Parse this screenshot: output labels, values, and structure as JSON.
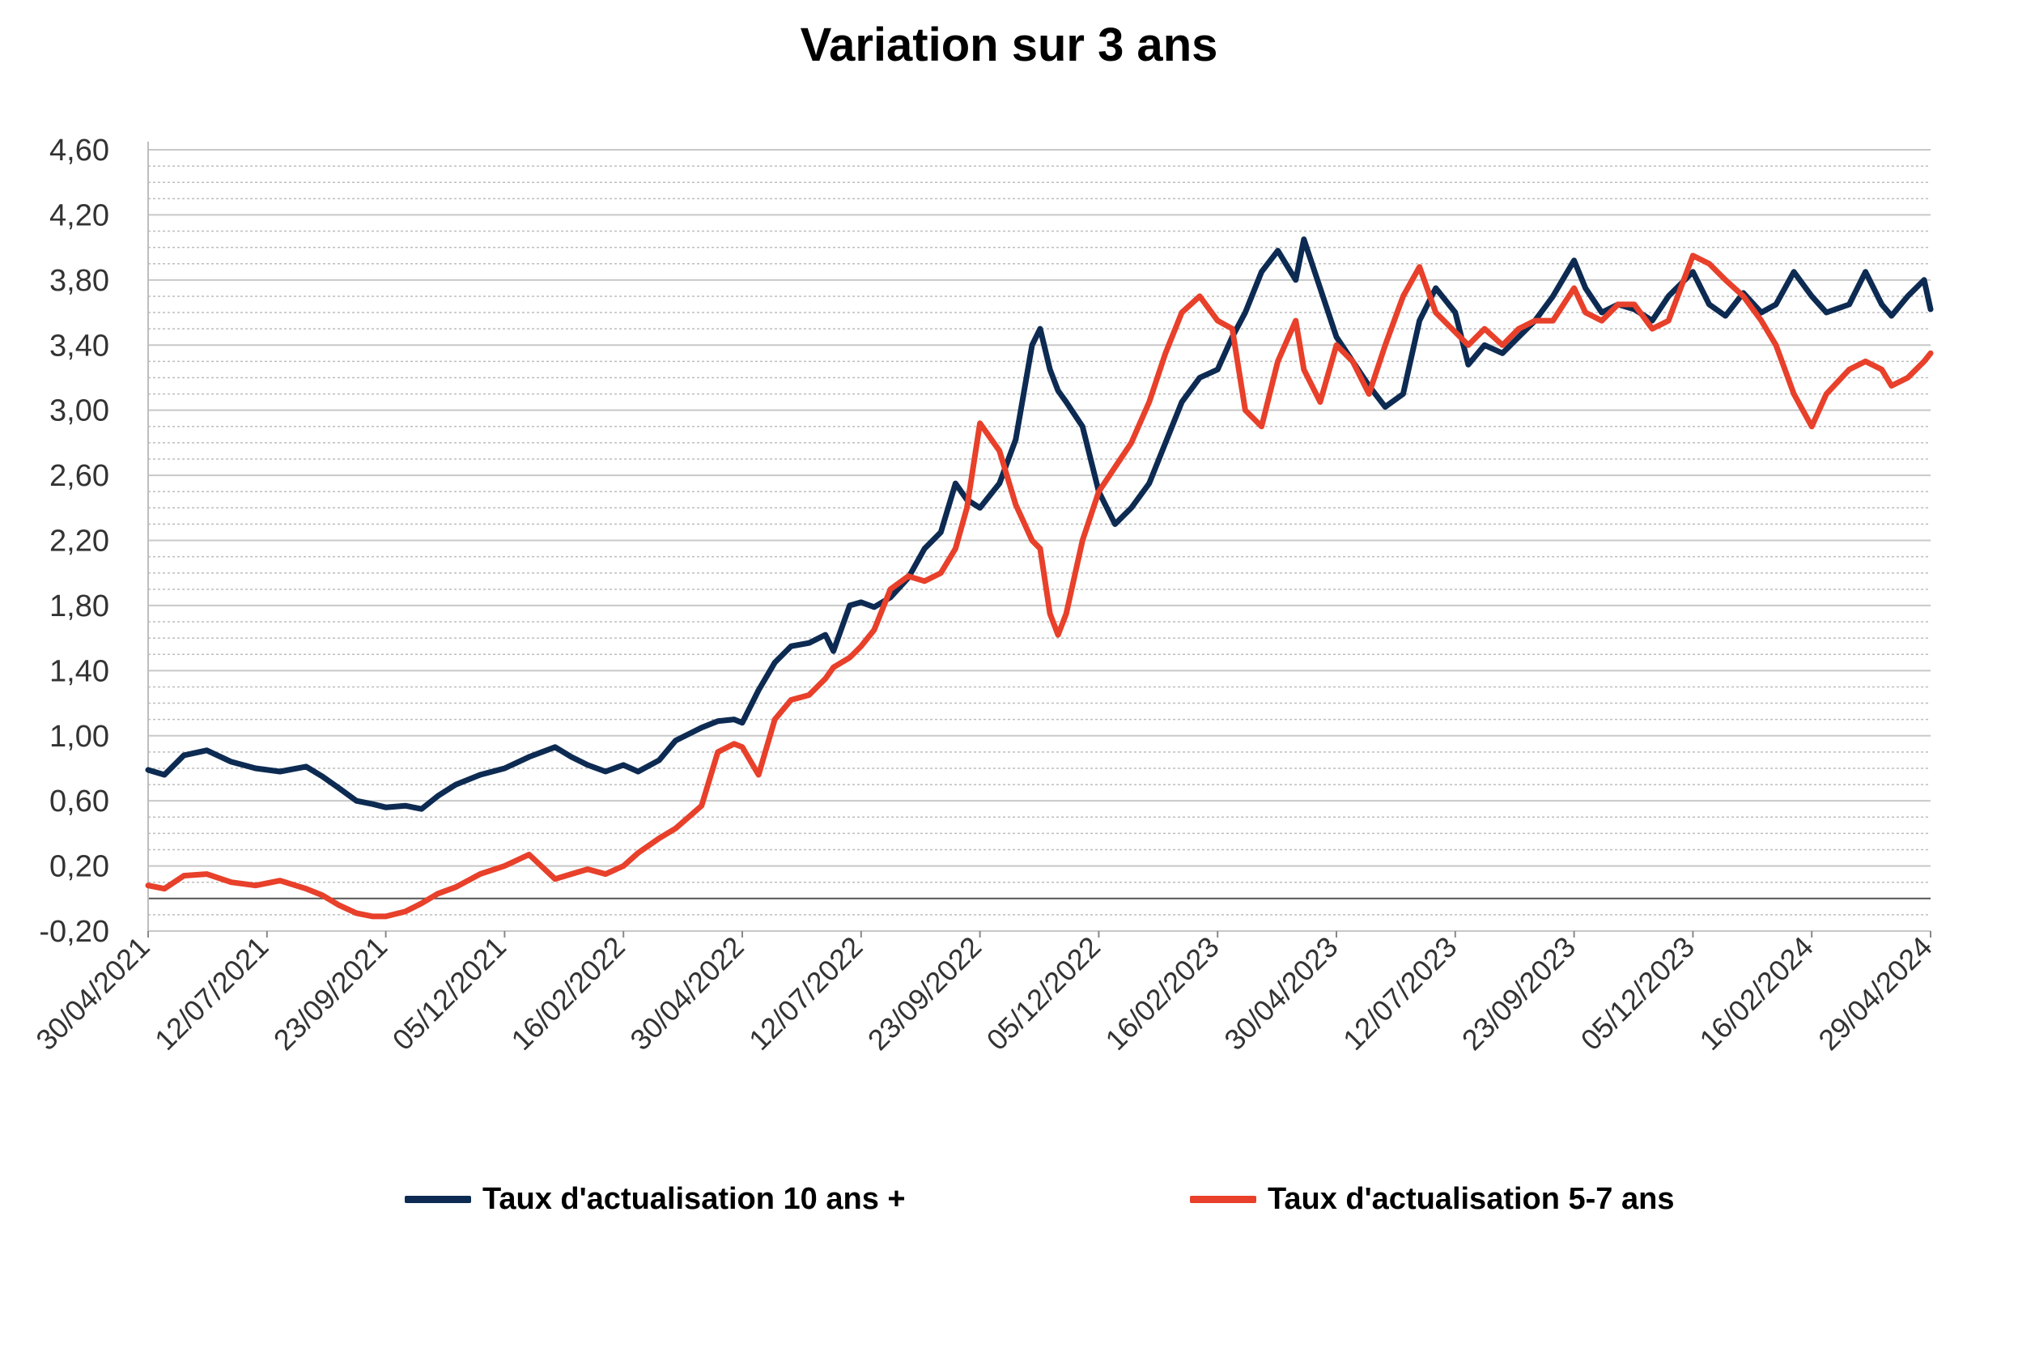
{
  "chart_data": {
    "type": "line",
    "title": "Variation sur 3 ans",
    "xlabel": "",
    "ylabel": "",
    "ylim": [
      -0.2,
      4.6
    ],
    "y_ticks": [
      "4,60",
      "4,20",
      "3,80",
      "3,40",
      "3,00",
      "2,60",
      "2,20",
      "1,80",
      "1,40",
      "1,00",
      "0,60",
      "0,20",
      "-0,20"
    ],
    "y_tick_values": [
      4.6,
      4.2,
      3.8,
      3.4,
      3.0,
      2.6,
      2.2,
      1.8,
      1.4,
      1.0,
      0.6,
      0.2,
      -0.2
    ],
    "x_tick_labels": [
      "30/04/2021",
      "12/07/2021",
      "23/09/2021",
      "05/12/2021",
      "16/02/2022",
      "30/04/2022",
      "12/07/2022",
      "23/09/2022",
      "05/12/2022",
      "16/02/2023",
      "30/04/2023",
      "12/07/2023",
      "23/09/2023",
      "05/12/2023",
      "16/02/2024",
      "29/04/2024"
    ],
    "x_range": [
      "30/04/2021",
      "29/04/2024"
    ],
    "grid": true,
    "legend_position": "bottom",
    "series": [
      {
        "name": "Taux d'actualisation 10 ans +",
        "color": "#0d2b52",
        "points": [
          [
            "30/04/2021",
            0.79
          ],
          [
            "10/05/2021",
            0.76
          ],
          [
            "22/05/2021",
            0.88
          ],
          [
            "05/06/2021",
            0.91
          ],
          [
            "20/06/2021",
            0.84
          ],
          [
            "05/07/2021",
            0.8
          ],
          [
            "20/07/2021",
            0.78
          ],
          [
            "05/08/2021",
            0.81
          ],
          [
            "15/08/2021",
            0.75
          ],
          [
            "25/08/2021",
            0.68
          ],
          [
            "05/09/2021",
            0.6
          ],
          [
            "15/09/2021",
            0.58
          ],
          [
            "23/09/2021",
            0.56
          ],
          [
            "05/10/2021",
            0.57
          ],
          [
            "15/10/2021",
            0.55
          ],
          [
            "25/10/2021",
            0.63
          ],
          [
            "05/11/2021",
            0.7
          ],
          [
            "20/11/2021",
            0.76
          ],
          [
            "05/12/2021",
            0.8
          ],
          [
            "20/12/2021",
            0.87
          ],
          [
            "05/01/2022",
            0.93
          ],
          [
            "15/01/2022",
            0.87
          ],
          [
            "25/01/2022",
            0.82
          ],
          [
            "05/02/2022",
            0.78
          ],
          [
            "16/02/2022",
            0.82
          ],
          [
            "25/02/2022",
            0.78
          ],
          [
            "10/03/2022",
            0.85
          ],
          [
            "20/03/2022",
            0.97
          ],
          [
            "05/04/2022",
            1.05
          ],
          [
            "15/04/2022",
            1.09
          ],
          [
            "25/04/2022",
            1.1
          ],
          [
            "30/04/2022",
            1.08
          ],
          [
            "10/05/2022",
            1.28
          ],
          [
            "20/05/2022",
            1.45
          ],
          [
            "30/05/2022",
            1.55
          ],
          [
            "10/06/2022",
            1.57
          ],
          [
            "20/06/2022",
            1.62
          ],
          [
            "25/06/2022",
            1.52
          ],
          [
            "05/07/2022",
            1.8
          ],
          [
            "12/07/2022",
            1.82
          ],
          [
            "20/07/2022",
            1.79
          ],
          [
            "30/07/2022",
            1.85
          ],
          [
            "10/08/2022",
            1.97
          ],
          [
            "20/08/2022",
            2.15
          ],
          [
            "30/08/2022",
            2.25
          ],
          [
            "08/09/2022",
            2.55
          ],
          [
            "15/09/2022",
            2.45
          ],
          [
            "23/09/2022",
            2.4
          ],
          [
            "05/10/2022",
            2.55
          ],
          [
            "15/10/2022",
            2.82
          ],
          [
            "25/10/2022",
            3.4
          ],
          [
            "30/10/2022",
            3.5
          ],
          [
            "05/11/2022",
            3.25
          ],
          [
            "10/11/2022",
            3.12
          ],
          [
            "15/11/2022",
            3.05
          ],
          [
            "25/11/2022",
            2.9
          ],
          [
            "05/12/2022",
            2.5
          ],
          [
            "15/12/2022",
            2.3
          ],
          [
            "25/12/2022",
            2.4
          ],
          [
            "05/01/2023",
            2.55
          ],
          [
            "15/01/2023",
            2.8
          ],
          [
            "25/01/2023",
            3.05
          ],
          [
            "05/02/2023",
            3.2
          ],
          [
            "16/02/2023",
            3.25
          ],
          [
            "25/02/2023",
            3.45
          ],
          [
            "05/03/2023",
            3.6
          ],
          [
            "15/03/2023",
            3.85
          ],
          [
            "25/03/2023",
            3.98
          ],
          [
            "05/04/2023",
            3.8
          ],
          [
            "10/04/2023",
            4.05
          ],
          [
            "20/04/2023",
            3.75
          ],
          [
            "30/04/2023",
            3.45
          ],
          [
            "10/05/2023",
            3.3
          ],
          [
            "20/05/2023",
            3.15
          ],
          [
            "30/05/2023",
            3.02
          ],
          [
            "10/06/2023",
            3.1
          ],
          [
            "20/06/2023",
            3.55
          ],
          [
            "30/06/2023",
            3.75
          ],
          [
            "12/07/2023",
            3.6
          ],
          [
            "20/07/2023",
            3.28
          ],
          [
            "30/07/2023",
            3.4
          ],
          [
            "10/08/2023",
            3.35
          ],
          [
            "20/08/2023",
            3.45
          ],
          [
            "30/08/2023",
            3.55
          ],
          [
            "10/09/2023",
            3.7
          ],
          [
            "23/09/2023",
            3.92
          ],
          [
            "30/09/2023",
            3.75
          ],
          [
            "10/10/2023",
            3.6
          ],
          [
            "20/10/2023",
            3.65
          ],
          [
            "30/10/2023",
            3.62
          ],
          [
            "10/11/2023",
            3.55
          ],
          [
            "20/11/2023",
            3.7
          ],
          [
            "05/12/2023",
            3.85
          ],
          [
            "15/12/2023",
            3.65
          ],
          [
            "25/12/2023",
            3.58
          ],
          [
            "05/01/2024",
            3.72
          ],
          [
            "16/01/2024",
            3.6
          ],
          [
            "25/01/2024",
            3.65
          ],
          [
            "05/02/2024",
            3.85
          ],
          [
            "16/02/2024",
            3.7
          ],
          [
            "25/02/2024",
            3.6
          ],
          [
            "10/03/2024",
            3.65
          ],
          [
            "20/03/2024",
            3.85
          ],
          [
            "30/03/2024",
            3.65
          ],
          [
            "05/04/2024",
            3.58
          ],
          [
            "15/04/2024",
            3.7
          ],
          [
            "25/04/2024",
            3.8
          ],
          [
            "29/04/2024",
            3.62
          ]
        ]
      },
      {
        "name": "Taux d'actualisation 5-7 ans",
        "color": "#e8402a",
        "points": [
          [
            "30/04/2021",
            0.08
          ],
          [
            "10/05/2021",
            0.06
          ],
          [
            "22/05/2021",
            0.14
          ],
          [
            "05/06/2021",
            0.15
          ],
          [
            "20/06/2021",
            0.1
          ],
          [
            "05/07/2021",
            0.08
          ],
          [
            "20/07/2021",
            0.11
          ],
          [
            "05/08/2021",
            0.06
          ],
          [
            "15/08/2021",
            0.02
          ],
          [
            "25/08/2021",
            -0.04
          ],
          [
            "05/09/2021",
            -0.09
          ],
          [
            "15/09/2021",
            -0.11
          ],
          [
            "23/09/2021",
            -0.11
          ],
          [
            "05/10/2021",
            -0.08
          ],
          [
            "15/10/2021",
            -0.03
          ],
          [
            "25/10/2021",
            0.03
          ],
          [
            "05/11/2021",
            0.07
          ],
          [
            "20/11/2021",
            0.15
          ],
          [
            "05/12/2021",
            0.2
          ],
          [
            "20/12/2021",
            0.27
          ],
          [
            "05/01/2022",
            0.12
          ],
          [
            "15/01/2022",
            0.15
          ],
          [
            "25/01/2022",
            0.18
          ],
          [
            "05/02/2022",
            0.15
          ],
          [
            "16/02/2022",
            0.2
          ],
          [
            "25/02/2022",
            0.28
          ],
          [
            "10/03/2022",
            0.37
          ],
          [
            "20/03/2022",
            0.43
          ],
          [
            "05/04/2022",
            0.57
          ],
          [
            "15/04/2022",
            0.9
          ],
          [
            "25/04/2022",
            0.95
          ],
          [
            "30/04/2022",
            0.93
          ],
          [
            "10/05/2022",
            0.76
          ],
          [
            "20/05/2022",
            1.1
          ],
          [
            "30/05/2022",
            1.22
          ],
          [
            "10/06/2022",
            1.25
          ],
          [
            "20/06/2022",
            1.35
          ],
          [
            "25/06/2022",
            1.42
          ],
          [
            "05/07/2022",
            1.48
          ],
          [
            "12/07/2022",
            1.55
          ],
          [
            "20/07/2022",
            1.65
          ],
          [
            "30/07/2022",
            1.9
          ],
          [
            "10/08/2022",
            1.98
          ],
          [
            "20/08/2022",
            1.95
          ],
          [
            "30/08/2022",
            2.0
          ],
          [
            "08/09/2022",
            2.15
          ],
          [
            "15/09/2022",
            2.4
          ],
          [
            "23/09/2022",
            2.92
          ],
          [
            "05/10/2022",
            2.75
          ],
          [
            "15/10/2022",
            2.42
          ],
          [
            "25/10/2022",
            2.2
          ],
          [
            "30/10/2022",
            2.15
          ],
          [
            "05/11/2022",
            1.75
          ],
          [
            "10/11/2022",
            1.62
          ],
          [
            "15/11/2022",
            1.75
          ],
          [
            "25/11/2022",
            2.2
          ],
          [
            "05/12/2022",
            2.5
          ],
          [
            "15/12/2022",
            2.65
          ],
          [
            "25/12/2022",
            2.8
          ],
          [
            "05/01/2023",
            3.05
          ],
          [
            "15/01/2023",
            3.35
          ],
          [
            "25/01/2023",
            3.6
          ],
          [
            "05/02/2023",
            3.7
          ],
          [
            "16/02/2023",
            3.55
          ],
          [
            "25/02/2023",
            3.5
          ],
          [
            "05/03/2023",
            3.0
          ],
          [
            "15/03/2023",
            2.9
          ],
          [
            "25/03/2023",
            3.3
          ],
          [
            "05/04/2023",
            3.55
          ],
          [
            "10/04/2023",
            3.25
          ],
          [
            "20/04/2023",
            3.05
          ],
          [
            "30/04/2023",
            3.4
          ],
          [
            "10/05/2023",
            3.3
          ],
          [
            "20/05/2023",
            3.1
          ],
          [
            "30/05/2023",
            3.4
          ],
          [
            "10/06/2023",
            3.7
          ],
          [
            "20/06/2023",
            3.88
          ],
          [
            "30/06/2023",
            3.6
          ],
          [
            "12/07/2023",
            3.48
          ],
          [
            "20/07/2023",
            3.4
          ],
          [
            "30/07/2023",
            3.5
          ],
          [
            "10/08/2023",
            3.4
          ],
          [
            "20/08/2023",
            3.5
          ],
          [
            "30/08/2023",
            3.55
          ],
          [
            "10/09/2023",
            3.55
          ],
          [
            "23/09/2023",
            3.75
          ],
          [
            "30/09/2023",
            3.6
          ],
          [
            "10/10/2023",
            3.55
          ],
          [
            "20/10/2023",
            3.65
          ],
          [
            "30/10/2023",
            3.65
          ],
          [
            "10/11/2023",
            3.5
          ],
          [
            "20/11/2023",
            3.55
          ],
          [
            "05/12/2023",
            3.95
          ],
          [
            "15/12/2023",
            3.9
          ],
          [
            "25/12/2023",
            3.8
          ],
          [
            "05/01/2024",
            3.7
          ],
          [
            "16/01/2024",
            3.55
          ],
          [
            "25/01/2024",
            3.4
          ],
          [
            "05/02/2024",
            3.1
          ],
          [
            "16/02/2024",
            2.9
          ],
          [
            "25/02/2024",
            3.1
          ],
          [
            "10/03/2024",
            3.25
          ],
          [
            "20/03/2024",
            3.3
          ],
          [
            "30/03/2024",
            3.25
          ],
          [
            "05/04/2024",
            3.15
          ],
          [
            "15/04/2024",
            3.2
          ],
          [
            "25/04/2024",
            3.3
          ],
          [
            "29/04/2024",
            3.35
          ]
        ]
      }
    ]
  }
}
